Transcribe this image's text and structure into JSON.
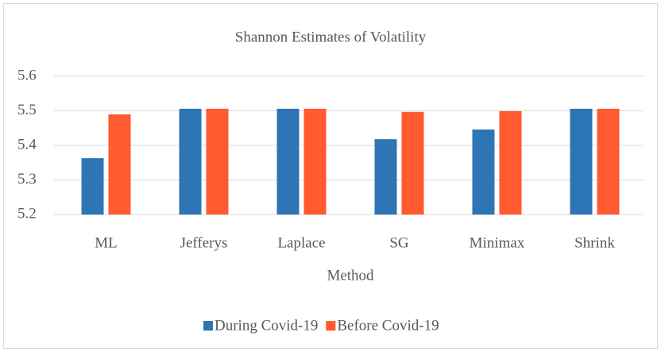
{
  "chart_data": {
    "type": "bar",
    "title": "Shannon Estimates of Volatility",
    "x_label": "Method",
    "categories": [
      "ML",
      "Jefferys",
      "Laplace",
      "SG",
      "Minimax",
      "Shrink"
    ],
    "series": [
      {
        "name": "During Covid-19",
        "color": "#2e75b6",
        "values": [
          5.363,
          5.506,
          5.506,
          5.418,
          5.446,
          5.506
        ]
      },
      {
        "name": "Before Covid-19",
        "color": "#ff5a30",
        "values": [
          5.49,
          5.506,
          5.506,
          5.497,
          5.499,
          5.506
        ]
      }
    ],
    "ylim": [
      5.2,
      5.6
    ],
    "yticks": [
      5.2,
      5.3,
      5.4,
      5.5,
      5.6
    ],
    "grid": true,
    "legend": "bottom"
  }
}
